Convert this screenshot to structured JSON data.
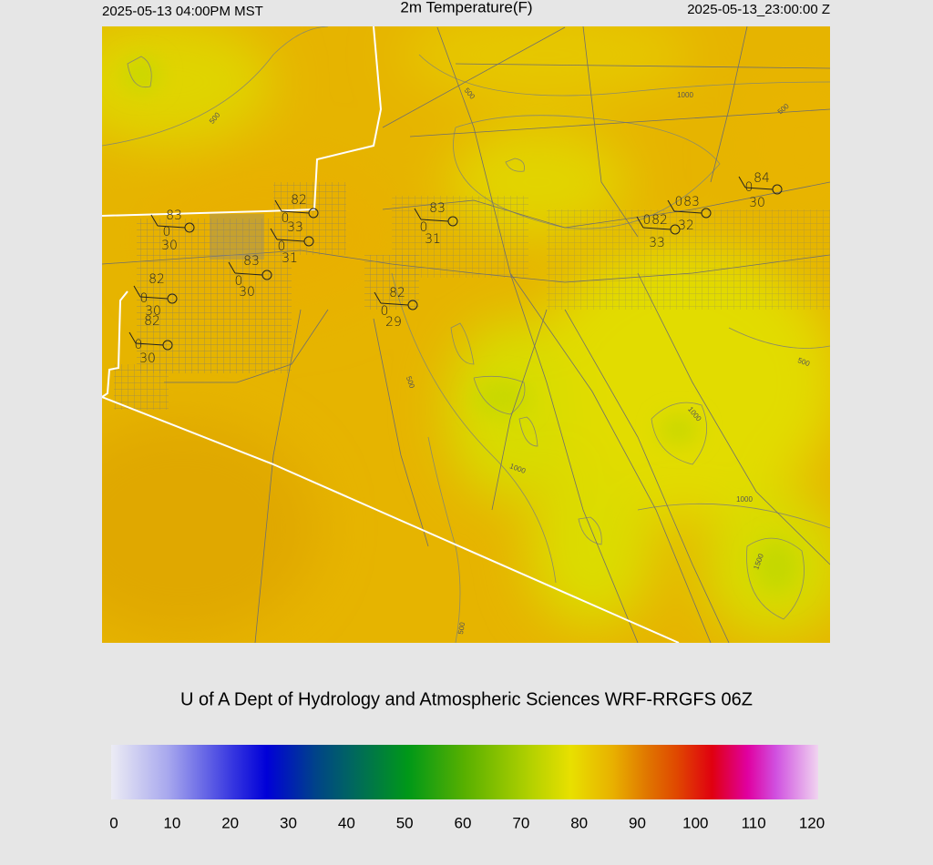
{
  "header": {
    "left": "2025-05-13 04:00PM MST",
    "title": "2m Temperature(F)",
    "right": "2025-05-13_23:00:00 Z"
  },
  "stations": [
    {
      "temp": 83,
      "calm": 0,
      "dew": 30
    },
    {
      "temp": 82,
      "calm": 0,
      "dew": 33
    },
    {
      "calm": 0,
      "dew": 31
    },
    {
      "temp": 83,
      "calm": 0,
      "dew": 30
    },
    {
      "temp": 82,
      "calm": 0,
      "dew": 30
    },
    {
      "temp": 82,
      "calm": 0,
      "dew": 30
    },
    {
      "temp": 83,
      "calm": 0,
      "dew": 31
    },
    {
      "temp": 82,
      "calm": 0,
      "dew": 29
    },
    {
      "temp": 82,
      "calm": 0,
      "dew": 33
    },
    {
      "temp": 83,
      "calm": 0,
      "dew": 32
    },
    {
      "temp": 84,
      "calm": 0,
      "dew": 30
    }
  ],
  "contour_labels": [
    "500",
    "500",
    "1000",
    "500",
    "500",
    "1000",
    "1000",
    "1000",
    "500",
    "1500",
    "500"
  ],
  "credit": "U of A Dept of Hydrology and Atmospheric Sciences WRF-RRGFS 06Z",
  "colorbar": {
    "ticks": [
      0,
      10,
      20,
      30,
      40,
      50,
      60,
      70,
      80,
      90,
      100,
      110,
      120
    ]
  }
}
